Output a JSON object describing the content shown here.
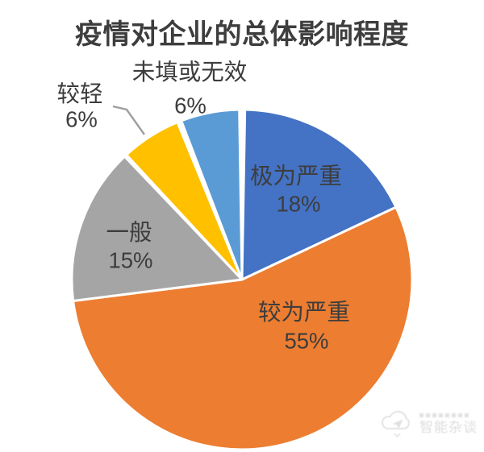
{
  "page": {
    "background_color": "#ffffff",
    "text_color": "#3d3d3d"
  },
  "chart_data": {
    "type": "pie",
    "title": "疫情对企业的总体影响程度",
    "start_angle_deg": 0,
    "direction": "clockwise",
    "legend": "none",
    "value_unit": "%",
    "background": "#ffffff",
    "text_color": "#3d3d3d",
    "slice_border_color": "#ffffff",
    "leader_line_color": "#9f9f9f",
    "slices": [
      {
        "label": "极为严重",
        "value": 18,
        "color": "#4472C4",
        "label_placement": "inside"
      },
      {
        "label": "较为严重",
        "value": 55,
        "color": "#ED7D31",
        "label_placement": "inside"
      },
      {
        "label": "一般",
        "value": 15,
        "color": "#A5A5A5",
        "label_placement": "inside"
      },
      {
        "label": "较轻",
        "value": 6,
        "color": "#FFC000",
        "label_placement": "outside-with-leader-line"
      },
      {
        "label": "未填或无效",
        "value": 6,
        "color": "#5B9BD5",
        "label_placement": "outside"
      }
    ]
  },
  "watermark": {
    "text": "智能杂谈"
  }
}
